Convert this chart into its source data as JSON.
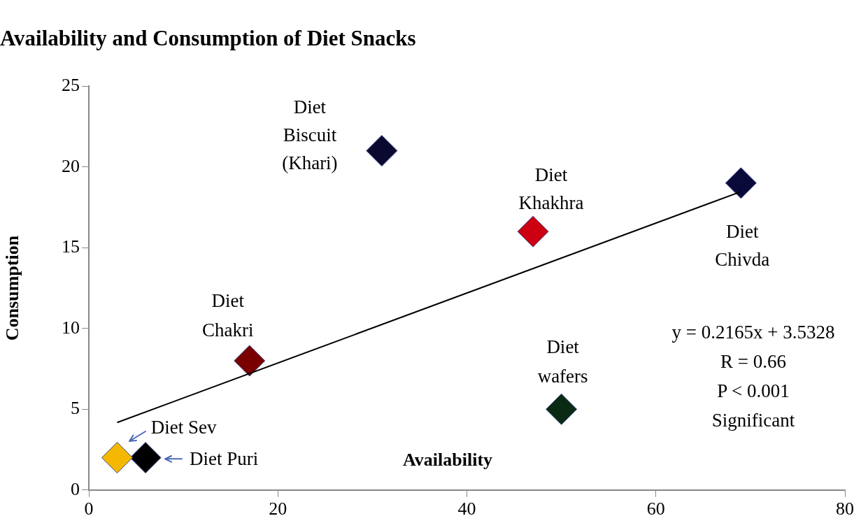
{
  "chart_data": {
    "type": "scatter",
    "title": "Availability and Consumption of Diet Snacks",
    "xlabel": "Availability",
    "ylabel": "Consumption",
    "xlim": [
      0,
      80
    ],
    "xticks": [
      0,
      20,
      40,
      60,
      80
    ],
    "ylim": [
      0,
      25
    ],
    "yticks": [
      0,
      5,
      10,
      15,
      20,
      25
    ],
    "grid": false,
    "marker": "diamond",
    "series": [
      {
        "name": "Diet Sev",
        "color": "#f5b800",
        "x": [
          3
        ],
        "values": [
          2
        ]
      },
      {
        "name": "Diet Puri",
        "color": "#000000",
        "x": [
          6
        ],
        "values": [
          2
        ]
      },
      {
        "name": "Diet Chakri",
        "color": "#7a0000",
        "x": [
          17
        ],
        "values": [
          8
        ]
      },
      {
        "name": "Diet Biscuit (Khari)",
        "color": "#0a0a30",
        "x": [
          31
        ],
        "values": [
          21
        ]
      },
      {
        "name": "Diet Khakhra",
        "color": "#cc0010",
        "x": [
          47
        ],
        "values": [
          16
        ]
      },
      {
        "name": "Diet wafers",
        "color": "#0a2a14",
        "x": [
          50
        ],
        "values": [
          5
        ]
      },
      {
        "name": "Diet Chivda",
        "color": "#0a0a3a",
        "x": [
          69
        ],
        "values": [
          19
        ]
      },
      {
        "type": "line",
        "color": "#000000",
        "marker": "none",
        "x": [
          3,
          69
        ],
        "values": [
          4.18,
          18.47
        ]
      }
    ],
    "annotations": [
      "y = 0.2165x + 3.5328",
      "R = 0.66",
      "P < 0.001",
      "Significant"
    ]
  }
}
